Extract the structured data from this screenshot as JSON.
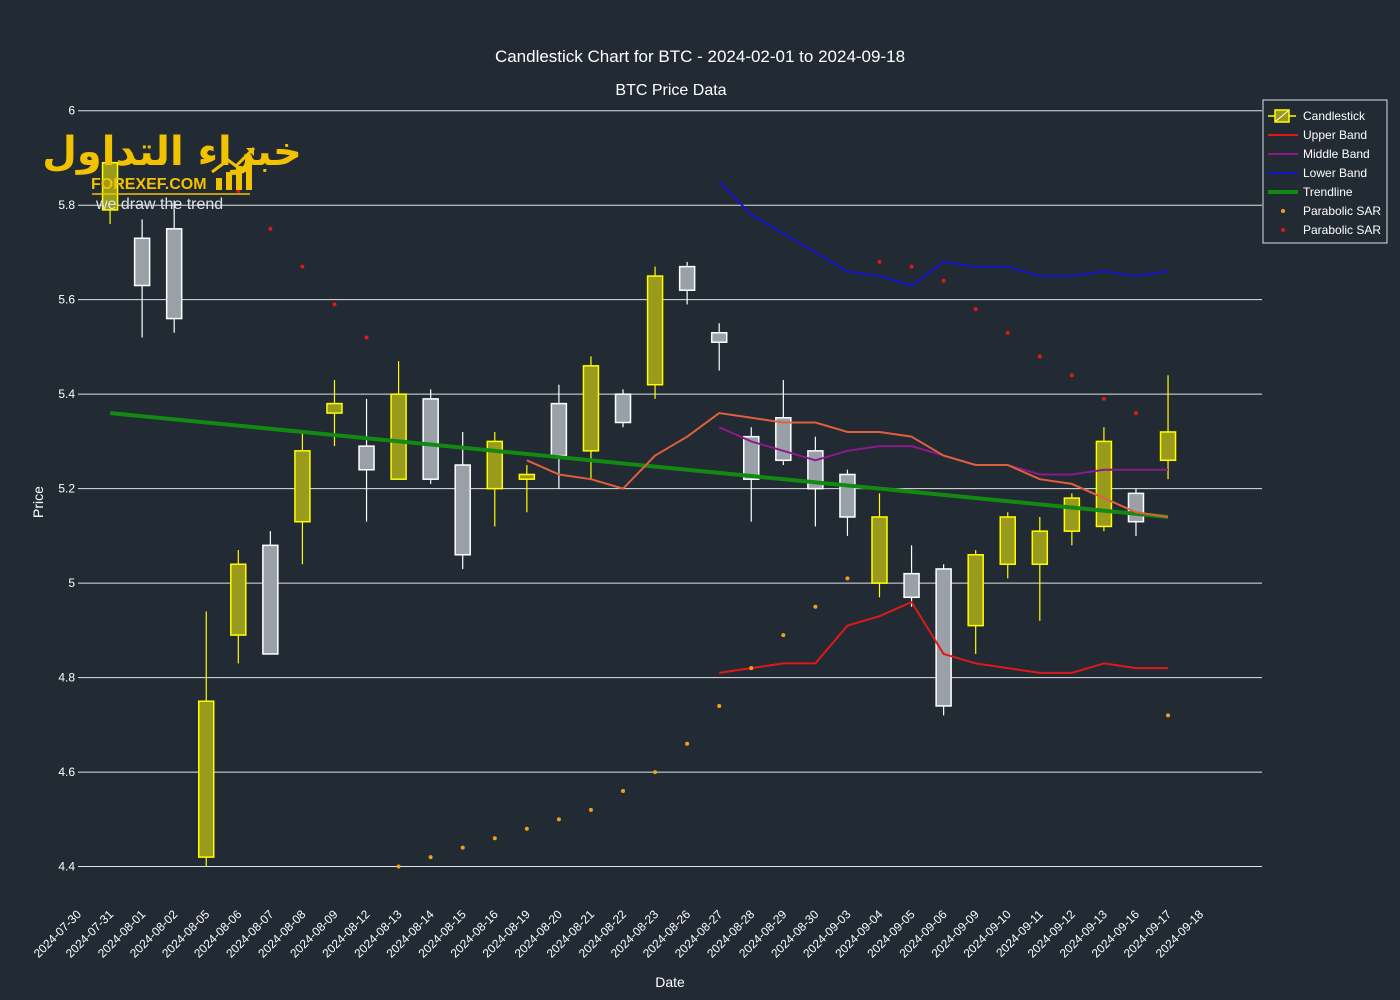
{
  "chart_data": {
    "type": "candlestick",
    "title": "Candlestick Chart for BTC - 2024-02-01 to 2024-09-18",
    "subtitle": "BTC Price Data",
    "xlabel": "Date",
    "ylabel": "Price",
    "ylim": [
      4.38,
      6.01
    ],
    "yticks": [
      4.4,
      4.6,
      4.8,
      5,
      5.2,
      5.4,
      5.6,
      5.8,
      6
    ],
    "ytick_labels": [
      "4.4",
      "4.6",
      "4.8",
      "5",
      "5.2",
      "5.4",
      "5.6",
      "5.8",
      "6"
    ],
    "grid": "horizontal",
    "legend_position": "top-right",
    "dates": [
      "2024-07-30",
      "2024-07-31",
      "2024-08-01",
      "2024-08-02",
      "2024-08-05",
      "2024-08-06",
      "2024-08-07",
      "2024-08-08",
      "2024-08-09",
      "2024-08-12",
      "2024-08-13",
      "2024-08-14",
      "2024-08-15",
      "2024-08-16",
      "2024-08-19",
      "2024-08-20",
      "2024-08-21",
      "2024-08-22",
      "2024-08-23",
      "2024-08-26",
      "2024-08-27",
      "2024-08-28",
      "2024-08-29",
      "2024-08-30",
      "2024-09-03",
      "2024-09-04",
      "2024-09-05",
      "2024-09-06",
      "2024-09-09",
      "2024-09-10",
      "2024-09-11",
      "2024-09-12",
      "2024-09-13",
      "2024-09-16",
      "2024-09-17",
      "2024-09-18"
    ],
    "candles": [
      {
        "date": "2024-07-31",
        "open": 5.79,
        "high": 5.91,
        "low": 5.76,
        "close": 5.89
      },
      {
        "date": "2024-08-01",
        "open": 5.73,
        "high": 5.77,
        "low": 5.52,
        "close": 5.63
      },
      {
        "date": "2024-08-02",
        "open": 5.75,
        "high": 5.81,
        "low": 5.53,
        "close": 5.56
      },
      {
        "date": "2024-08-05",
        "open": 4.42,
        "high": 4.94,
        "low": 4.4,
        "close": 4.75
      },
      {
        "date": "2024-08-06",
        "open": 4.89,
        "high": 5.07,
        "low": 4.83,
        "close": 5.04
      },
      {
        "date": "2024-08-07",
        "open": 5.08,
        "high": 5.11,
        "low": 4.85,
        "close": 4.85
      },
      {
        "date": "2024-08-08",
        "open": 5.13,
        "high": 5.32,
        "low": 5.04,
        "close": 5.28
      },
      {
        "date": "2024-08-09",
        "open": 5.36,
        "high": 5.43,
        "low": 5.29,
        "close": 5.38
      },
      {
        "date": "2024-08-12",
        "open": 5.29,
        "high": 5.39,
        "low": 5.13,
        "close": 5.24
      },
      {
        "date": "2024-08-13",
        "open": 5.22,
        "high": 5.47,
        "low": 5.22,
        "close": 5.4
      },
      {
        "date": "2024-08-14",
        "open": 5.39,
        "high": 5.41,
        "low": 5.21,
        "close": 5.22
      },
      {
        "date": "2024-08-15",
        "open": 5.25,
        "high": 5.32,
        "low": 5.03,
        "close": 5.06
      },
      {
        "date": "2024-08-16",
        "open": 5.2,
        "high": 5.32,
        "low": 5.12,
        "close": 5.3
      },
      {
        "date": "2024-08-19",
        "open": 5.22,
        "high": 5.25,
        "low": 5.15,
        "close": 5.23
      },
      {
        "date": "2024-08-20",
        "open": 5.38,
        "high": 5.42,
        "low": 5.2,
        "close": 5.27
      },
      {
        "date": "2024-08-21",
        "open": 5.28,
        "high": 5.48,
        "low": 5.22,
        "close": 5.46
      },
      {
        "date": "2024-08-22",
        "open": 5.4,
        "high": 5.41,
        "low": 5.33,
        "close": 5.34
      },
      {
        "date": "2024-08-23",
        "open": 5.42,
        "high": 5.67,
        "low": 5.39,
        "close": 5.65
      },
      {
        "date": "2024-08-26",
        "open": 5.67,
        "high": 5.68,
        "low": 5.59,
        "close": 5.62
      },
      {
        "date": "2024-08-27",
        "open": 5.53,
        "high": 5.55,
        "low": 5.45,
        "close": 5.51
      },
      {
        "date": "2024-08-28",
        "open": 5.31,
        "high": 5.33,
        "low": 5.13,
        "close": 5.22
      },
      {
        "date": "2024-08-29",
        "open": 5.35,
        "high": 5.43,
        "low": 5.25,
        "close": 5.26
      },
      {
        "date": "2024-08-30",
        "open": 5.28,
        "high": 5.31,
        "low": 5.12,
        "close": 5.2
      },
      {
        "date": "2024-09-03",
        "open": 5.23,
        "high": 5.24,
        "low": 5.1,
        "close": 5.14
      },
      {
        "date": "2024-09-04",
        "open": 5.0,
        "high": 5.19,
        "low": 4.97,
        "close": 5.14
      },
      {
        "date": "2024-09-05",
        "open": 5.02,
        "high": 5.08,
        "low": 4.95,
        "close": 4.97
      },
      {
        "date": "2024-09-06",
        "open": 5.03,
        "high": 5.04,
        "low": 4.72,
        "close": 4.74
      },
      {
        "date": "2024-09-09",
        "open": 4.91,
        "high": 5.07,
        "low": 4.85,
        "close": 5.06
      },
      {
        "date": "2024-09-10",
        "open": 5.04,
        "high": 5.15,
        "low": 5.01,
        "close": 5.14
      },
      {
        "date": "2024-09-11",
        "open": 5.04,
        "high": 5.14,
        "low": 4.92,
        "close": 5.11
      },
      {
        "date": "2024-09-12",
        "open": 5.11,
        "high": 5.19,
        "low": 5.08,
        "close": 5.18
      },
      {
        "date": "2024-09-13",
        "open": 5.12,
        "high": 5.33,
        "low": 5.11,
        "close": 5.3
      },
      {
        "date": "2024-09-16",
        "open": 5.19,
        "high": 5.2,
        "low": 5.1,
        "close": 5.13
      },
      {
        "date": "2024-09-17",
        "open": 5.26,
        "high": 5.44,
        "low": 5.22,
        "close": 5.32
      }
    ],
    "series": [
      {
        "name": "Upper Band",
        "color": "#e01818",
        "x": [
          "2024-08-27",
          "2024-08-28",
          "2024-08-29",
          "2024-08-30",
          "2024-09-03",
          "2024-09-04",
          "2024-09-05",
          "2024-09-06",
          "2024-09-09",
          "2024-09-10",
          "2024-09-11",
          "2024-09-12",
          "2024-09-13",
          "2024-09-16",
          "2024-09-17"
        ],
        "values": [
          4.81,
          4.82,
          4.83,
          4.83,
          4.91,
          4.93,
          4.96,
          4.85,
          4.83,
          4.82,
          4.81,
          4.81,
          4.83,
          4.82,
          4.82
        ]
      },
      {
        "name": "Middle Band",
        "color": "#8b1a8b",
        "x": [
          "2024-08-27",
          "2024-08-28",
          "2024-08-29",
          "2024-08-30",
          "2024-09-03",
          "2024-09-04",
          "2024-09-05",
          "2024-09-06",
          "2024-09-09",
          "2024-09-10",
          "2024-09-11",
          "2024-09-12",
          "2024-09-13",
          "2024-09-16",
          "2024-09-17"
        ],
        "values": [
          5.33,
          5.3,
          5.28,
          5.26,
          5.28,
          5.29,
          5.29,
          5.27,
          5.25,
          5.25,
          5.23,
          5.23,
          5.24,
          5.24,
          5.24
        ]
      },
      {
        "name": "Lower Band",
        "color": "#1414c8",
        "x": [
          "2024-08-27",
          "2024-08-28",
          "2024-08-29",
          "2024-08-30",
          "2024-09-03",
          "2024-09-04",
          "2024-09-05",
          "2024-09-06",
          "2024-09-09",
          "2024-09-10",
          "2024-09-11",
          "2024-09-12",
          "2024-09-13",
          "2024-09-16",
          "2024-09-17"
        ],
        "values": [
          5.85,
          5.78,
          5.74,
          5.7,
          5.66,
          5.65,
          5.63,
          5.68,
          5.67,
          5.67,
          5.65,
          5.65,
          5.66,
          5.65,
          5.66
        ]
      },
      {
        "name": "Trendline",
        "color": "#128a12",
        "x": [
          "2024-07-31",
          "2024-09-17"
        ],
        "values": [
          5.36,
          5.14
        ]
      },
      {
        "name": "",
        "color": "#e0603c",
        "x": [
          "2024-08-19",
          "2024-08-20",
          "2024-08-21",
          "2024-08-22",
          "2024-08-23",
          "2024-08-26",
          "2024-08-27",
          "2024-08-28",
          "2024-08-29",
          "2024-08-30",
          "2024-09-03",
          "2024-09-04",
          "2024-09-05",
          "2024-09-06",
          "2024-09-09",
          "2024-09-10",
          "2024-09-11",
          "2024-09-12",
          "2024-09-13",
          "2024-09-16",
          "2024-09-17"
        ],
        "values": [
          5.26,
          5.23,
          5.22,
          5.2,
          5.27,
          5.31,
          5.36,
          5.35,
          5.34,
          5.34,
          5.32,
          5.32,
          5.31,
          5.27,
          5.25,
          5.25,
          5.22,
          5.21,
          5.18,
          5.15,
          5.14
        ]
      }
    ],
    "psar_orange": {
      "name": "Parabolic SAR",
      "color": "#f0a020",
      "points": [
        [
          "2024-08-13",
          4.4
        ],
        [
          "2024-08-14",
          4.42
        ],
        [
          "2024-08-15",
          4.44
        ],
        [
          "2024-08-16",
          4.46
        ],
        [
          "2024-08-19",
          4.48
        ],
        [
          "2024-08-20",
          4.5
        ],
        [
          "2024-08-21",
          4.52
        ],
        [
          "2024-08-22",
          4.56
        ],
        [
          "2024-08-23",
          4.6
        ],
        [
          "2024-08-26",
          4.66
        ],
        [
          "2024-08-27",
          4.74
        ],
        [
          "2024-08-28",
          4.82
        ],
        [
          "2024-08-29",
          4.89
        ],
        [
          "2024-08-30",
          4.95
        ],
        [
          "2024-09-03",
          5.01
        ],
        [
          "2024-09-17",
          4.72
        ]
      ]
    },
    "psar_red": {
      "name": "Parabolic SAR",
      "color": "#e01818",
      "points": [
        [
          "2024-08-05",
          5.92
        ],
        [
          "2024-08-06",
          5.83
        ],
        [
          "2024-08-07",
          5.75
        ],
        [
          "2024-08-08",
          5.67
        ],
        [
          "2024-08-09",
          5.59
        ],
        [
          "2024-08-12",
          5.52
        ],
        [
          "2024-09-04",
          5.68
        ],
        [
          "2024-09-05",
          5.67
        ],
        [
          "2024-09-06",
          5.64
        ],
        [
          "2024-09-09",
          5.58
        ],
        [
          "2024-09-10",
          5.53
        ],
        [
          "2024-09-11",
          5.48
        ],
        [
          "2024-09-12",
          5.44
        ],
        [
          "2024-09-13",
          5.39
        ],
        [
          "2024-09-16",
          5.36
        ]
      ]
    },
    "legend": [
      "Candlestick",
      "Upper Band",
      "Middle Band",
      "Lower Band",
      "Trendline",
      "Parabolic SAR",
      "Parabolic SAR"
    ]
  },
  "colors": {
    "background": "#222a33",
    "grid": "#dfe3e8",
    "bull_fill": "#9a9a1c",
    "bull_line": "#ffff00",
    "bear_fill": "#9aa0a8",
    "bear_line": "#ffffff"
  },
  "logo": {
    "arabic": "خبراء التداول",
    "site": "FOREXEF.COM",
    "tagline": "we draw the trend"
  }
}
